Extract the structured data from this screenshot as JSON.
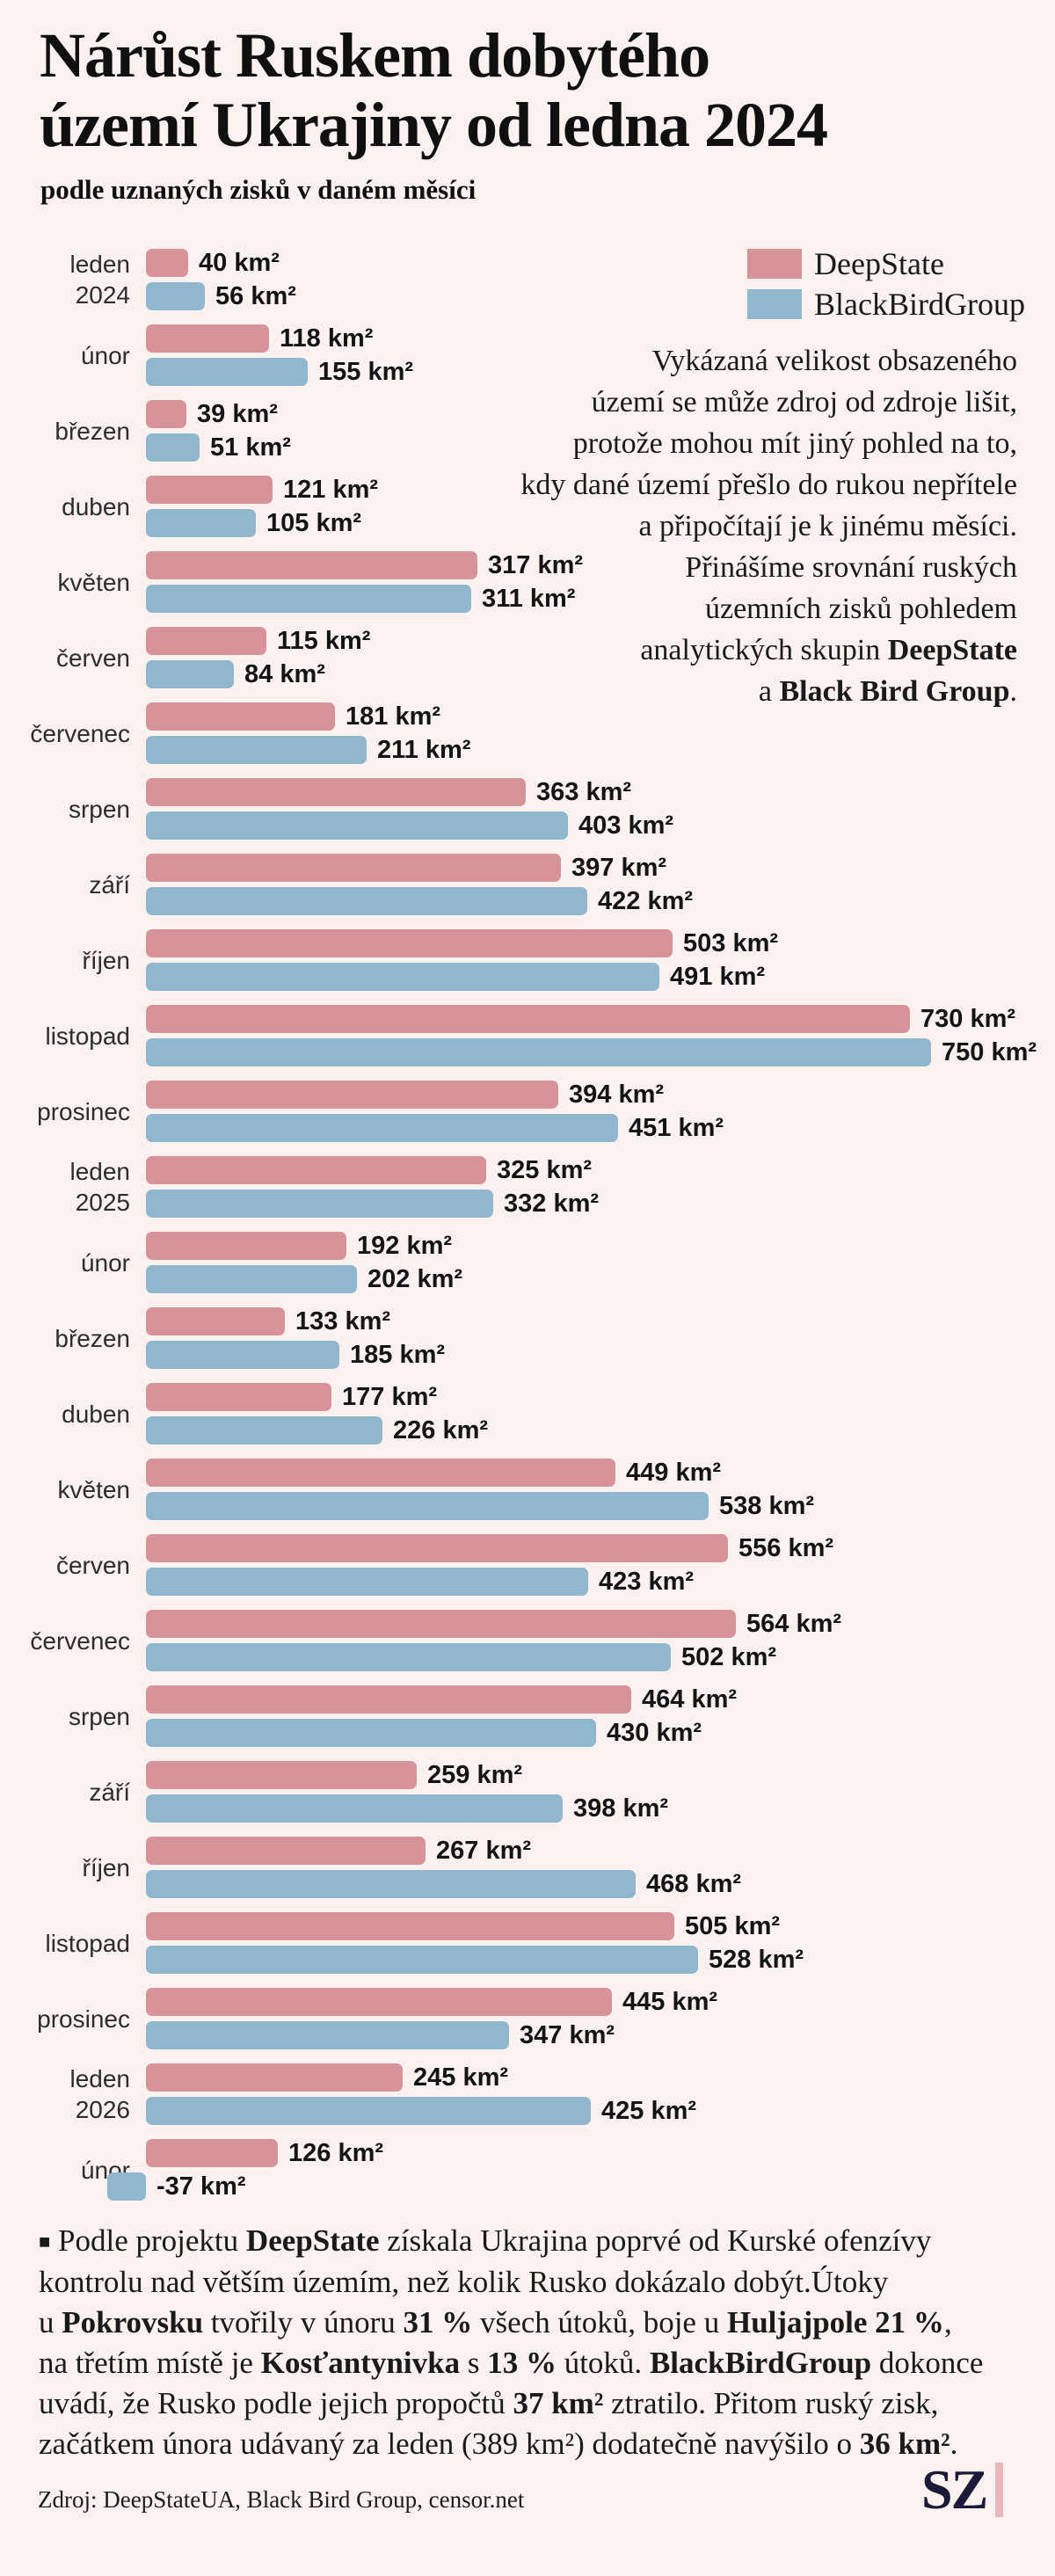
{
  "title": "Nárůst Ruskem dobytého\núzemí Ukrajiny od ledna 2024",
  "subtitle": "podle uznaných zisků v daném měsíci",
  "colors": {
    "background": "#fbf1ef",
    "deepstate": "#d7939a",
    "blackbird": "#90b7cd",
    "text": "#161616",
    "logo_navy": "#1b1b38",
    "logo_bar_pink": "#e8b7bb"
  },
  "legend": {
    "items": [
      {
        "label": "DeepState",
        "color": "#d7939a"
      },
      {
        "label": "BlackBirdGroup",
        "color": "#90b7cd"
      }
    ]
  },
  "intro_lines": [
    [
      {
        "t": "Vykázaná velikost obsazeného"
      }
    ],
    [
      {
        "t": "území se může zdroj od zdroje lišit,"
      }
    ],
    [
      {
        "t": "protože mohou mít jiný pohled na to,"
      }
    ],
    [
      {
        "t": "kdy dané území přešlo do rukou nepřítele"
      }
    ],
    [
      {
        "t": "a připočítají je k jinému měsíci."
      }
    ],
    [
      {
        "t": "Přinášíme srovnání ruských"
      }
    ],
    [
      {
        "t": "územních zisků pohledem"
      }
    ],
    [
      {
        "t": "analytických skupin "
      },
      {
        "t": "DeepState",
        "b": true
      }
    ],
    [
      {
        "t": "a "
      },
      {
        "t": "Black Bird Group",
        "b": true
      },
      {
        "t": "."
      }
    ]
  ],
  "chart_data": {
    "type": "bar",
    "orientation": "horizontal",
    "unit": "km²",
    "value_label_suffix": " km²",
    "value_axis_max": 750,
    "legend_position": "top-right",
    "grid": false,
    "categories": [
      "leden 2024",
      "únor",
      "březen",
      "duben",
      "květen",
      "červen",
      "červenec",
      "srpen",
      "září",
      "říjen",
      "listopad",
      "prosinec",
      "leden 2025",
      "únor",
      "březen",
      "duben",
      "květen",
      "červen",
      "červenec",
      "srpen",
      "září",
      "říjen",
      "listopad",
      "prosinec",
      "leden 2026",
      "únor"
    ],
    "series": [
      {
        "name": "DeepState",
        "color": "#d7939a",
        "values": [
          40,
          118,
          39,
          121,
          317,
          115,
          181,
          363,
          397,
          503,
          730,
          394,
          325,
          192,
          133,
          177,
          449,
          556,
          564,
          464,
          259,
          267,
          505,
          445,
          245,
          126
        ]
      },
      {
        "name": "BlackBirdGroup",
        "color": "#90b7cd",
        "values": [
          56,
          155,
          51,
          105,
          311,
          84,
          211,
          403,
          422,
          491,
          750,
          451,
          332,
          202,
          185,
          226,
          538,
          423,
          502,
          430,
          398,
          468,
          528,
          347,
          425,
          -37
        ]
      }
    ]
  },
  "note_lines": [
    [
      {
        "t": "■",
        "s": true
      },
      {
        "t": " Podle projektu "
      },
      {
        "t": "DeepState",
        "b": true
      },
      {
        "t": " získala Ukrajina poprvé od Kurské ofenzívy"
      }
    ],
    [
      {
        "t": "kontrolu nad větším územím, než kolik Rusko dokázalo dobýt.Útoky"
      }
    ],
    [
      {
        "t": "u "
      },
      {
        "t": "Pokrovsku",
        "b": true
      },
      {
        "t": " tvořily v únoru "
      },
      {
        "t": "31 %",
        "b": true
      },
      {
        "t": " všech útoků, boje u "
      },
      {
        "t": "Huljajpole 21 %",
        "b": true
      },
      {
        "t": ","
      }
    ],
    [
      {
        "t": "na třetím místě je "
      },
      {
        "t": "Kosťantynivka",
        "b": true
      },
      {
        "t": " s "
      },
      {
        "t": "13 %",
        "b": true
      },
      {
        "t": " útoků. "
      },
      {
        "t": "BlackBirdGroup",
        "b": true
      },
      {
        "t": " dokonce"
      }
    ],
    [
      {
        "t": "uvádí, že Rusko podle jejich propočtů "
      },
      {
        "t": "37 km²",
        "b": true
      },
      {
        "t": " ztratilo. Přitom ruský zisk,"
      }
    ],
    [
      {
        "t": "začátkem února udávaný za leden (389 km²) dodatečně navýšilo o "
      },
      {
        "t": "36 km²",
        "b": true
      },
      {
        "t": "."
      }
    ]
  ],
  "footer": {
    "source": "Zdroj: DeepStateUA, Black Bird Group, censor.net",
    "logo": "SZ"
  }
}
